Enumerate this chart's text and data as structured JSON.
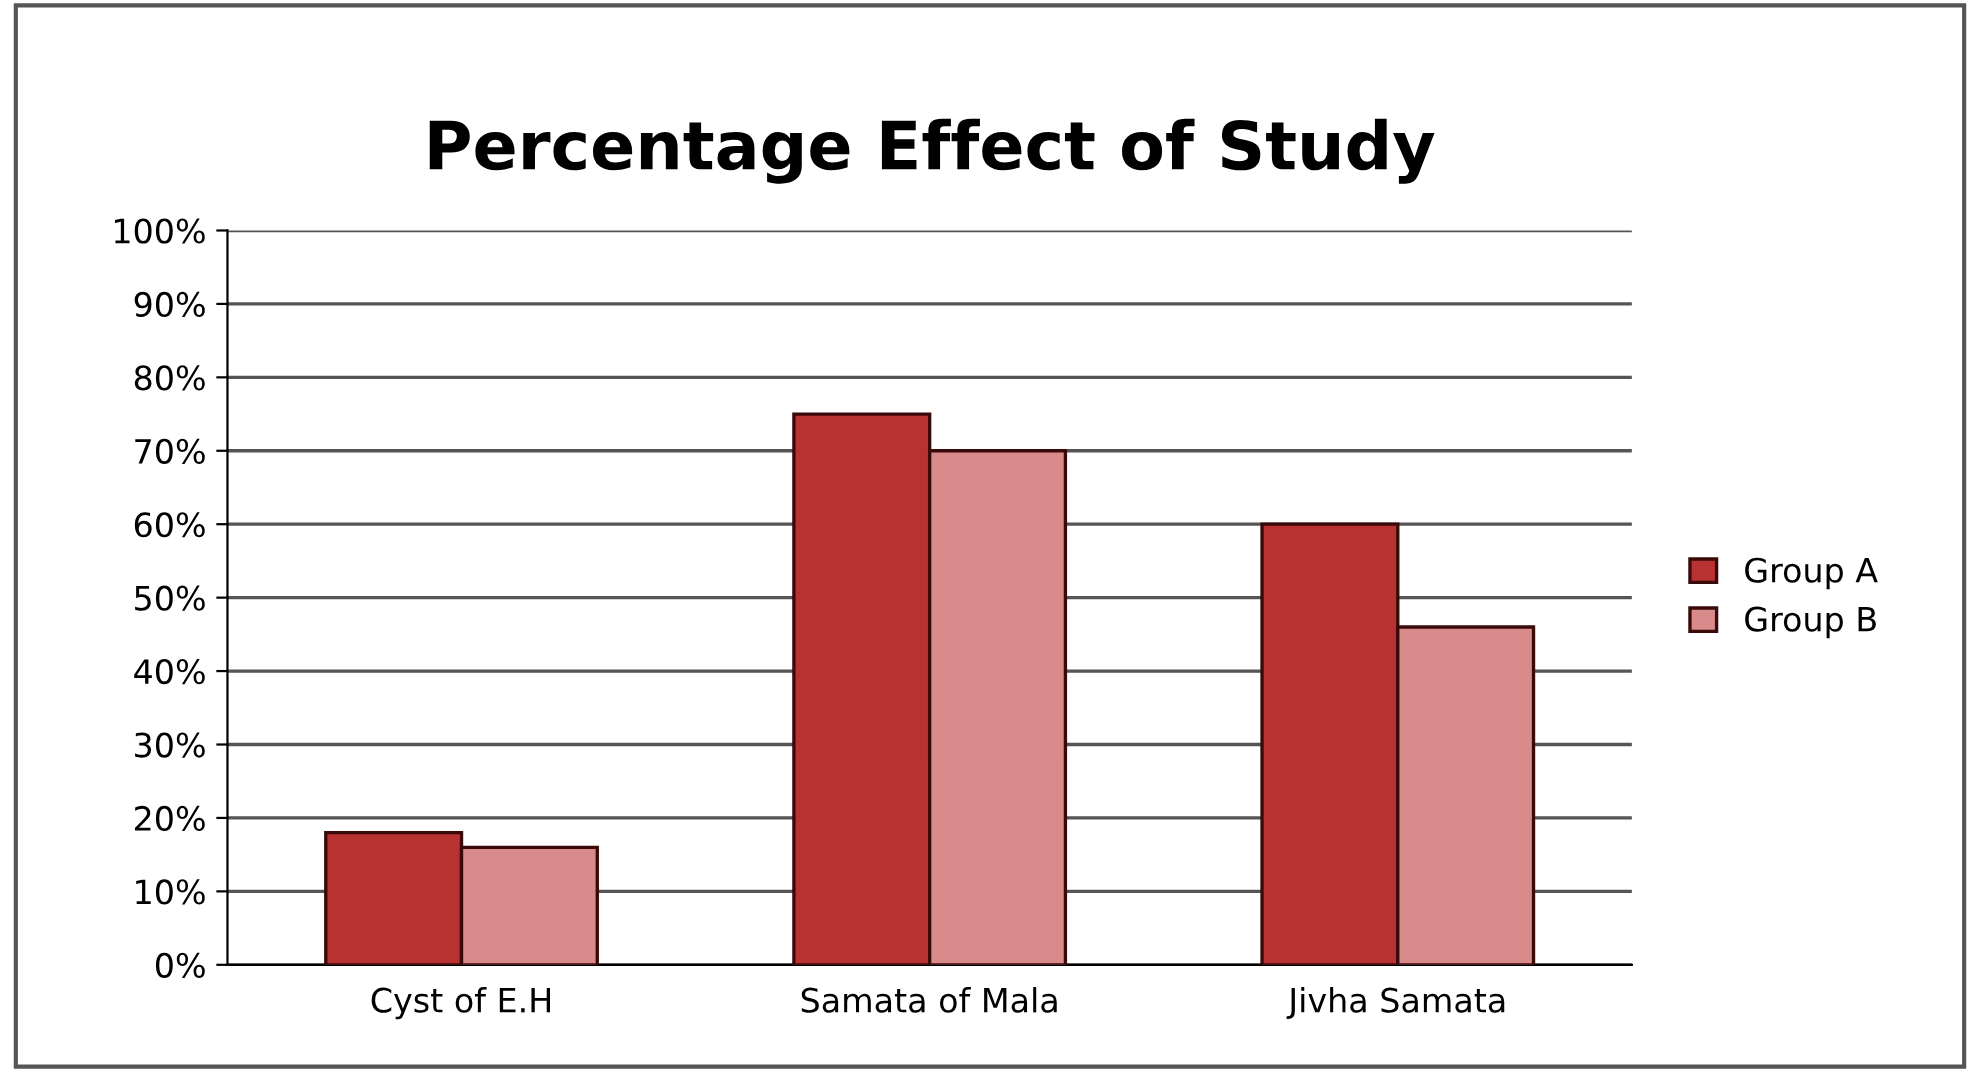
{
  "chart_data": {
    "type": "bar",
    "title": "Percentage Effect of Study",
    "categories": [
      "Cyst of E.H",
      "Samata of Mala",
      "Jivha Samata"
    ],
    "series": [
      {
        "name": "Group A",
        "color": "#b83232",
        "values": [
          18,
          75,
          60
        ]
      },
      {
        "name": "Group B",
        "color": "#d98a8a",
        "values": [
          16,
          70,
          46
        ]
      }
    ],
    "ylim": [
      0,
      100
    ],
    "yticks": [
      {
        "value": 0,
        "label": "0%"
      },
      {
        "value": 10,
        "label": "10%"
      },
      {
        "value": 20,
        "label": "20%"
      },
      {
        "value": 30,
        "label": "30%"
      },
      {
        "value": 40,
        "label": "40%"
      },
      {
        "value": 50,
        "label": "50%"
      },
      {
        "value": 60,
        "label": "60%"
      },
      {
        "value": 70,
        "label": "70%"
      },
      {
        "value": 80,
        "label": "80%"
      },
      {
        "value": 90,
        "label": "90%"
      },
      {
        "value": 100,
        "label": "100%"
      }
    ],
    "grid": "y",
    "legend": "right"
  }
}
